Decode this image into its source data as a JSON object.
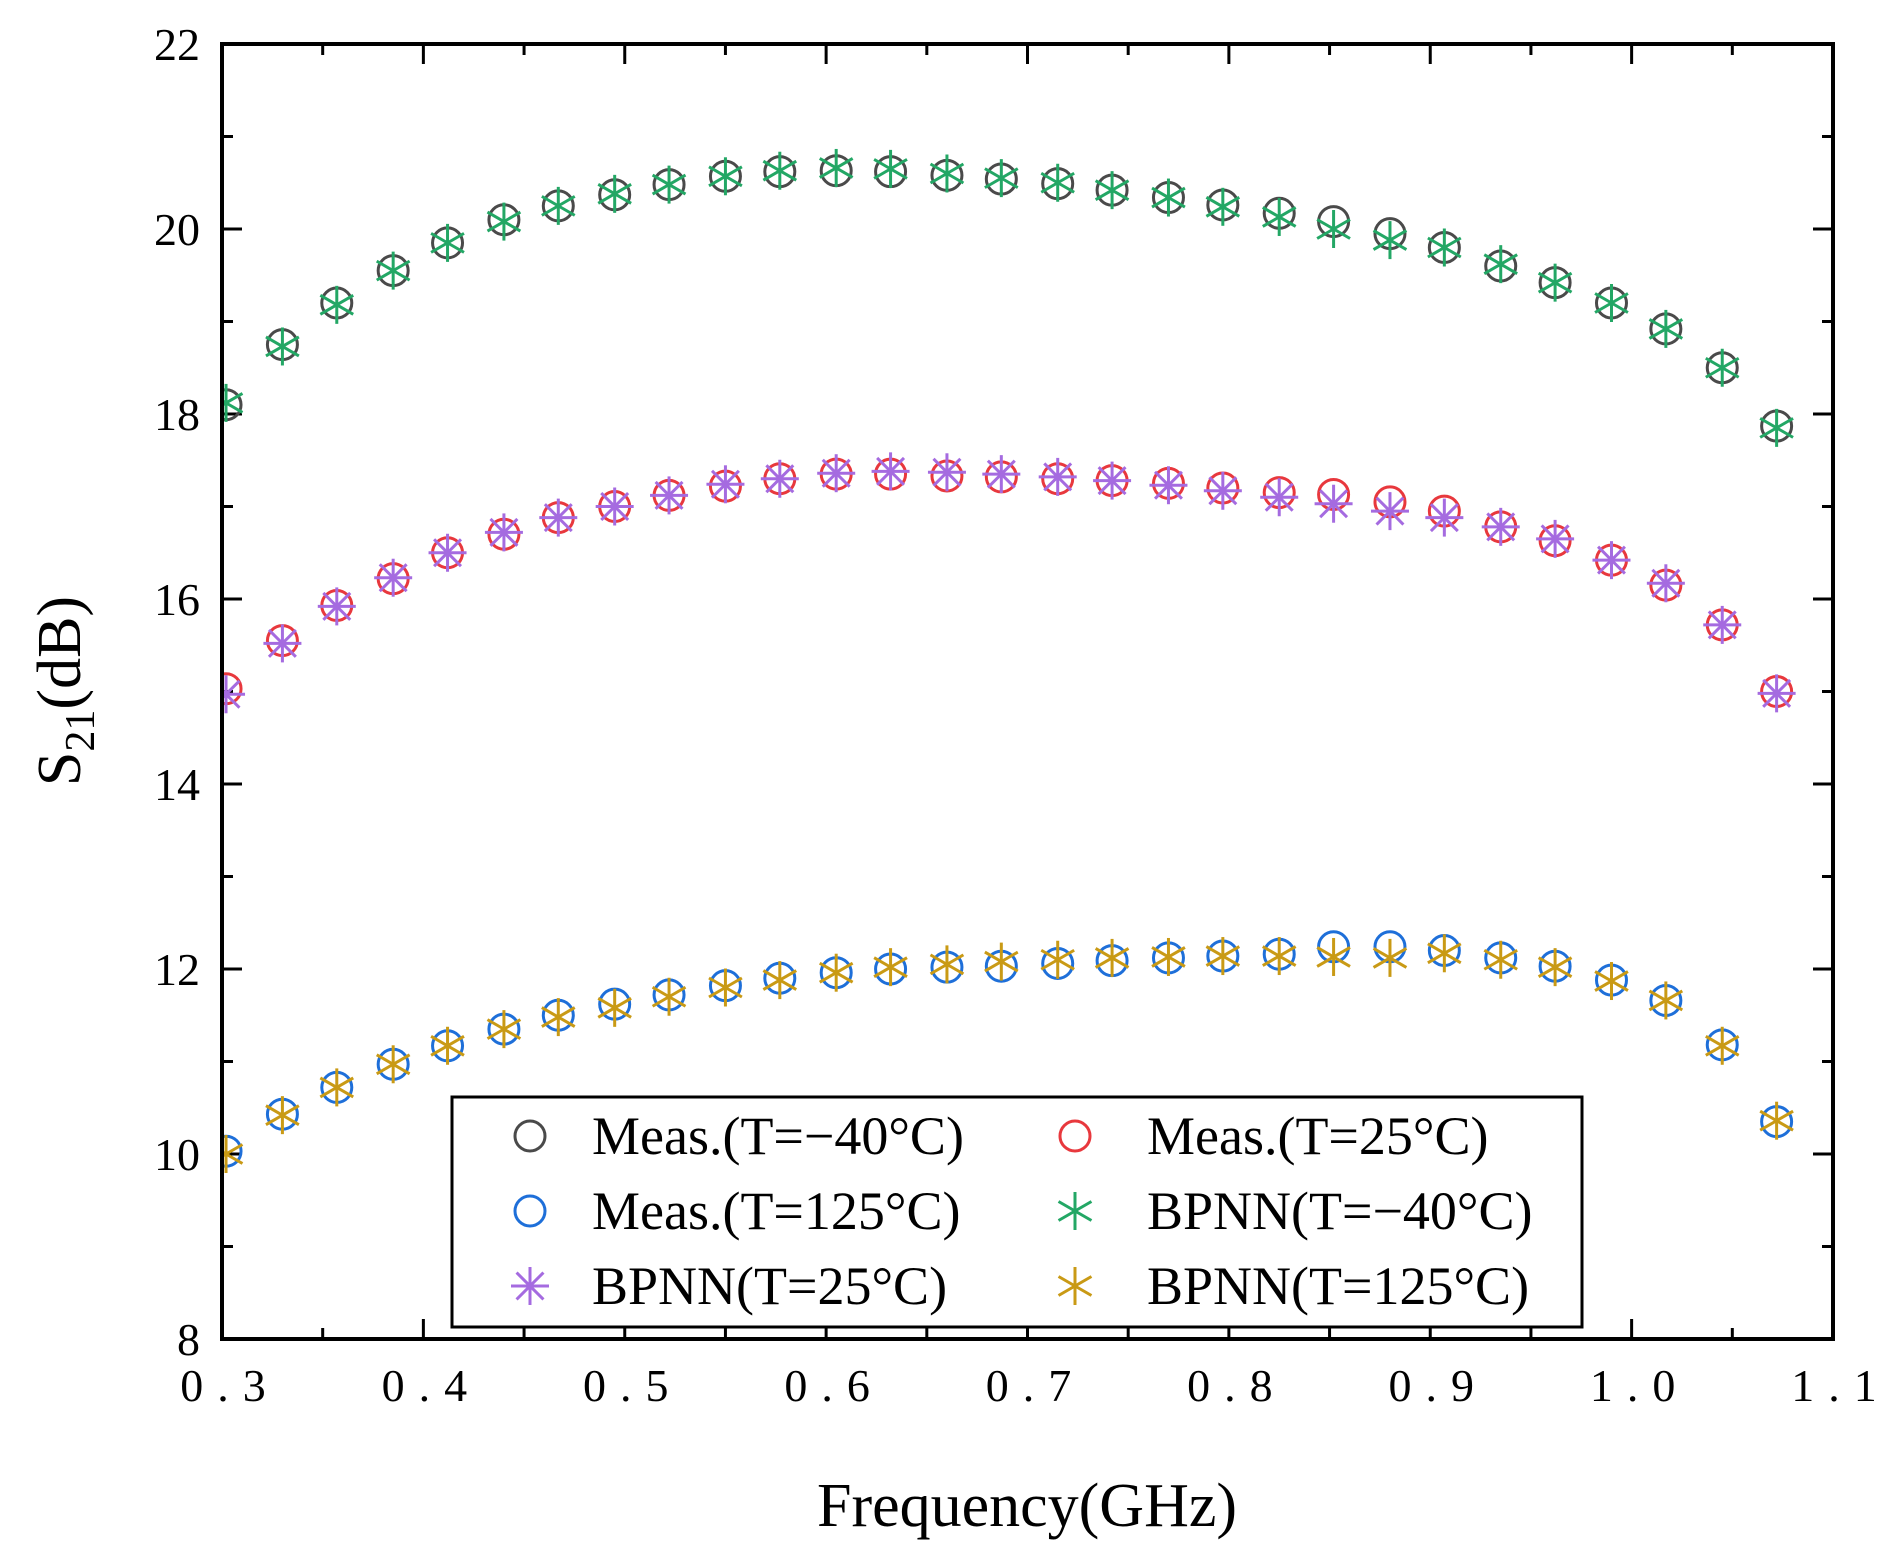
{
  "chart_data": {
    "type": "scatter",
    "title": "",
    "xlabel": "Frequency(GHz)",
    "ylabel_main": "S",
    "ylabel_sub": "21",
    "ylabel_unit": "(dB)",
    "xlim": [
      0.3,
      1.1
    ],
    "ylim": [
      8,
      22
    ],
    "xticks": [
      0.3,
      0.4,
      0.5,
      0.6,
      0.7,
      0.8,
      0.9,
      1.0,
      1.1
    ],
    "xtick_labels": [
      "0.3",
      "0.4",
      "0.5",
      "0.6",
      "0.7",
      "0.8",
      "0.9",
      "1.0",
      "1.1"
    ],
    "yticks": [
      8,
      10,
      12,
      14,
      16,
      18,
      20,
      22
    ],
    "ytick_labels": [
      "8",
      "10",
      "12",
      "14",
      "16",
      "18",
      "20",
      "22"
    ],
    "legend_position": "bottom-center",
    "x": [
      0.302,
      0.33,
      0.357,
      0.385,
      0.412,
      0.44,
      0.467,
      0.495,
      0.522,
      0.55,
      0.577,
      0.605,
      0.632,
      0.66,
      0.687,
      0.715,
      0.742,
      0.77,
      0.797,
      0.825,
      0.852,
      0.88,
      0.907,
      0.935,
      0.962,
      0.99,
      1.017,
      1.045,
      1.072
    ],
    "series": [
      {
        "name": "Meas.(T=−40°C)",
        "marker": "circle",
        "color": "#4a4a4a",
        "values": [
          18.1,
          18.75,
          19.2,
          19.55,
          19.85,
          20.1,
          20.25,
          20.37,
          20.48,
          20.57,
          20.62,
          20.63,
          20.62,
          20.58,
          20.54,
          20.49,
          20.42,
          20.34,
          20.26,
          20.17,
          20.08,
          19.95,
          19.8,
          19.6,
          19.42,
          19.2,
          18.92,
          18.5,
          17.87
        ]
      },
      {
        "name": "Meas.(T=25°C)",
        "marker": "circle",
        "color": "#e8383d",
        "values": [
          15.03,
          15.55,
          15.93,
          16.22,
          16.5,
          16.7,
          16.88,
          17.0,
          17.12,
          17.22,
          17.3,
          17.35,
          17.35,
          17.33,
          17.32,
          17.3,
          17.28,
          17.25,
          17.2,
          17.15,
          17.13,
          17.05,
          16.95,
          16.78,
          16.63,
          16.42,
          16.15,
          15.72,
          15.0
        ]
      },
      {
        "name": "Meas.(T=125°C)",
        "marker": "circle",
        "color": "#1e6fd9",
        "values": [
          10.03,
          10.43,
          10.72,
          10.97,
          11.17,
          11.35,
          11.5,
          11.62,
          11.72,
          11.82,
          11.9,
          11.96,
          12.0,
          12.02,
          12.03,
          12.06,
          12.09,
          12.12,
          12.14,
          12.16,
          12.24,
          12.24,
          12.2,
          12.12,
          12.03,
          11.88,
          11.66,
          11.18,
          10.35
        ]
      },
      {
        "name": "BPNN(T=−40°C)",
        "marker": "asterisk6",
        "color": "#23a765",
        "values": [
          18.12,
          18.73,
          19.18,
          19.55,
          19.85,
          20.08,
          20.25,
          20.38,
          20.48,
          20.57,
          20.63,
          20.66,
          20.65,
          20.6,
          20.55,
          20.5,
          20.42,
          20.34,
          20.24,
          20.13,
          20.0,
          19.88,
          19.8,
          19.62,
          19.42,
          19.2,
          18.92,
          18.5,
          17.85
        ]
      },
      {
        "name": "BPNN(T=25°C)",
        "marker": "asterisk8",
        "color": "#a56be0",
        "values": [
          14.97,
          15.52,
          15.92,
          16.23,
          16.5,
          16.72,
          16.88,
          17.0,
          17.12,
          17.24,
          17.3,
          17.36,
          17.38,
          17.37,
          17.35,
          17.32,
          17.28,
          17.23,
          17.17,
          17.1,
          17.03,
          16.95,
          16.88,
          16.78,
          16.65,
          16.42,
          16.17,
          15.72,
          14.98
        ]
      },
      {
        "name": "BPNN(T=125°C)",
        "marker": "asterisk6",
        "color": "#c99a15",
        "values": [
          10.0,
          10.42,
          10.72,
          10.97,
          11.17,
          11.35,
          11.48,
          11.58,
          11.7,
          11.8,
          11.88,
          11.96,
          12.02,
          12.05,
          12.08,
          12.1,
          12.12,
          12.13,
          12.14,
          12.14,
          12.13,
          12.12,
          12.17,
          12.1,
          12.02,
          11.87,
          11.66,
          11.17,
          10.36
        ]
      }
    ]
  }
}
